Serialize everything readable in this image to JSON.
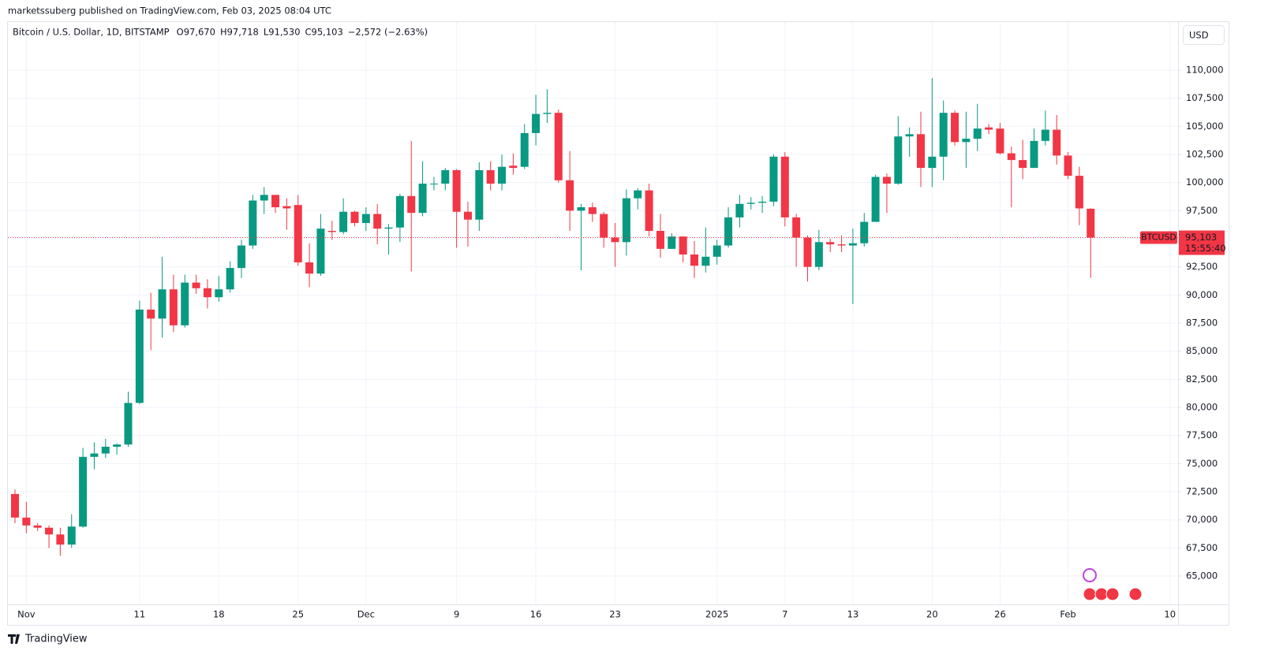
{
  "byline": "marketssuberg published on TradingView.com, Feb 03, 2025 08:04 UTC",
  "brand": "TradingView",
  "currency_button": "USD",
  "chart_data": {
    "type": "candlestick",
    "legend_header": {
      "symbol": "Bitcoin / U.S. Dollar, 1D, BITSTAMP",
      "ohlc": [
        {
          "key": "O",
          "value": "97,670"
        },
        {
          "key": "H",
          "value": "97,718"
        },
        {
          "key": "L",
          "value": "91,530"
        },
        {
          "key": "C",
          "value": "95,103"
        }
      ],
      "change": "−2,572 (−2.63%)"
    },
    "symbol_tag": "BTCUSD",
    "last_price_label": "95,103",
    "countdown": "15:55:40",
    "up_color": "#089981",
    "down_color": "#f23645",
    "grid": true,
    "categories": [
      null,
      "Nov",
      null,
      null,
      null,
      null,
      null,
      null,
      null,
      null,
      null,
      "11",
      null,
      null,
      null,
      null,
      null,
      null,
      "18",
      null,
      null,
      null,
      null,
      null,
      null,
      "25",
      null,
      null,
      null,
      null,
      null,
      "Dec",
      null,
      null,
      null,
      null,
      null,
      null,
      null,
      "9",
      null,
      null,
      null,
      null,
      null,
      null,
      "16",
      null,
      null,
      null,
      null,
      null,
      null,
      "23",
      null,
      null,
      null,
      null,
      null,
      null,
      null,
      null,
      "2025",
      null,
      null,
      null,
      null,
      null,
      "7",
      null,
      null,
      null,
      null,
      null,
      "13",
      null,
      null,
      null,
      null,
      null,
      null,
      "20",
      null,
      null,
      null,
      null,
      null,
      "26",
      null,
      null,
      null,
      null,
      null,
      "Feb",
      null,
      null,
      null,
      null,
      null,
      null,
      null,
      null,
      "10"
    ],
    "open": [
      72300,
      70200,
      69500,
      69300,
      68700,
      67800,
      69400,
      75600,
      75900,
      76500,
      76700,
      80400,
      88700,
      87900,
      90500,
      87300,
      91100,
      90600,
      89800,
      90500,
      92400,
      94400,
      98400,
      98900,
      97900,
      98000,
      92900,
      91900,
      95700,
      95600,
      97400,
      96400,
      97200,
      95900,
      96000,
      98800,
      97300,
      99900,
      99900,
      101100,
      97400,
      96700,
      101100,
      99900,
      101500,
      101400,
      104400,
      106100,
      106200,
      100200,
      97500,
      97800,
      97200,
      95100,
      94700,
      98600,
      99300,
      95700,
      94100,
      95200,
      93600,
      92600,
      93400,
      94400,
      96900,
      98100,
      98200,
      98300,
      102300,
      96900,
      95100,
      92500,
      94700,
      94500,
      94400,
      94600,
      96500,
      100500,
      99900,
      104100,
      104300,
      101300,
      102300,
      106200,
      103600,
      103900,
      104900,
      104800,
      102600,
      102000,
      101300,
      103700,
      104700,
      102400,
      100600,
      97670,
      null,
      null,
      null,
      null,
      null,
      null,
      null
    ],
    "high": [
      72700,
      71600,
      69700,
      69500,
      69300,
      70500,
      76400,
      76900,
      77200,
      76800,
      81400,
      89500,
      90200,
      93400,
      91800,
      91800,
      91800,
      91400,
      91700,
      93000,
      94900,
      98900,
      99600,
      98900,
      98600,
      98900,
      94600,
      97200,
      96600,
      98600,
      97500,
      97800,
      98100,
      96300,
      99000,
      103700,
      101900,
      100500,
      101300,
      101200,
      98300,
      101800,
      101900,
      102500,
      102600,
      105200,
      107800,
      108300,
      106500,
      102800,
      98100,
      98200,
      97400,
      96400,
      99400,
      99500,
      99900,
      97200,
      95500,
      95200,
      94800,
      96000,
      94900,
      97800,
      98900,
      98700,
      98800,
      102500,
      102700,
      97200,
      95300,
      95800,
      95000,
      95300,
      95900,
      97300,
      100700,
      100800,
      105900,
      104900,
      106300,
      109300,
      107300,
      106400,
      106300,
      107000,
      105200,
      105300,
      103200,
      103800,
      104800,
      106400,
      106000,
      102700,
      101400,
      97718,
      null,
      null,
      null,
      null,
      null,
      null,
      null
    ],
    "low": [
      69700,
      68800,
      69000,
      67500,
      66800,
      67500,
      69300,
      74500,
      75500,
      75800,
      76500,
      80300,
      85100,
      86200,
      86700,
      87100,
      90100,
      88800,
      89400,
      90200,
      91500,
      94100,
      97200,
      97300,
      95800,
      92600,
      90700,
      91700,
      94900,
      95400,
      96100,
      95700,
      94500,
      93600,
      94700,
      92100,
      97000,
      99300,
      99300,
      94200,
      94300,
      95700,
      99300,
      99300,
      100700,
      101200,
      103300,
      105300,
      100000,
      95700,
      92200,
      96500,
      94200,
      92500,
      93500,
      97600,
      95200,
      93300,
      94100,
      92900,
      91500,
      92000,
      92700,
      94200,
      96000,
      97600,
      97300,
      97900,
      96100,
      92500,
      91200,
      92200,
      93800,
      93800,
      89200,
      94300,
      96500,
      97300,
      99800,
      102300,
      99600,
      99600,
      100200,
      103300,
      101300,
      102800,
      104300,
      102500,
      97800,
      100300,
      101300,
      103300,
      101600,
      100300,
      96200,
      91530,
      null,
      null,
      null,
      null,
      null,
      null,
      null
    ],
    "close": [
      70200,
      69500,
      69300,
      68700,
      67800,
      69400,
      75600,
      75900,
      76500,
      76700,
      80400,
      88700,
      87900,
      90500,
      87300,
      91100,
      90600,
      89800,
      90500,
      92400,
      94400,
      98400,
      98900,
      97800,
      97700,
      92900,
      91900,
      95900,
      95600,
      97400,
      96400,
      97200,
      95900,
      96000,
      98800,
      97300,
      99900,
      99900,
      101100,
      97400,
      96700,
      101100,
      99900,
      101400,
      101300,
      104400,
      106100,
      106200,
      100200,
      97500,
      97800,
      97200,
      95100,
      94700,
      98600,
      99300,
      95700,
      94100,
      95200,
      93600,
      92600,
      93400,
      94400,
      96900,
      98100,
      98200,
      98300,
      102300,
      96900,
      95100,
      92500,
      94700,
      94500,
      94400,
      94600,
      96500,
      100500,
      99900,
      104100,
      104300,
      101300,
      102300,
      106200,
      103600,
      103900,
      104800,
      104700,
      102600,
      102000,
      101300,
      103700,
      104700,
      102400,
      100600,
      97700,
      95103,
      null,
      null,
      null,
      null,
      null,
      null,
      null
    ],
    "ylim": [
      62480,
      112380
    ],
    "yticks": [
      {
        "value": 65000,
        "label": "65,000"
      },
      {
        "value": 67500,
        "label": "67,500"
      },
      {
        "value": 70000,
        "label": "70,000"
      },
      {
        "value": 72500,
        "label": "72,500"
      },
      {
        "value": 75000,
        "label": "75,000"
      },
      {
        "value": 77500,
        "label": "77,500"
      },
      {
        "value": 80000,
        "label": "80,000"
      },
      {
        "value": 82500,
        "label": "82,500"
      },
      {
        "value": 85000,
        "label": "85,000"
      },
      {
        "value": 87500,
        "label": "87,500"
      },
      {
        "value": 90000,
        "label": "90,000"
      },
      {
        "value": 92500,
        "label": "92,500"
      },
      {
        "value": 95000,
        "label": "95,000"
      },
      {
        "value": 97500,
        "label": "97,500"
      },
      {
        "value": 100000,
        "label": "100,000"
      },
      {
        "value": 102500,
        "label": "102,500"
      },
      {
        "value": 105000,
        "label": "105,000"
      },
      {
        "value": 107500,
        "label": "107,500"
      },
      {
        "value": 110000,
        "label": "110,000"
      }
    ]
  }
}
